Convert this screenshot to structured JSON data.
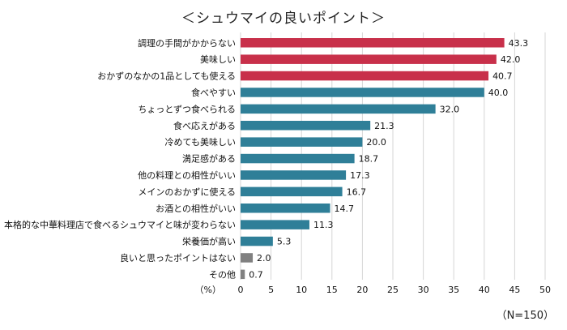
{
  "chart_data": {
    "type": "bar",
    "orientation": "horizontal",
    "title": "＜シュウマイの良いポイント＞",
    "unit_label": "（%）",
    "sample_note": "（N=150）",
    "xlim": [
      0,
      50
    ],
    "x_ticks": [
      0,
      5,
      10,
      15,
      20,
      25,
      30,
      35,
      40,
      45,
      50
    ],
    "grid": true,
    "categories": [
      "調理の手間がかからない",
      "美味しい",
      "おかずのなかの1品としても使える",
      "食べやすい",
      "ちょっとずつ食べられる",
      "食べ応えがある",
      "冷めても美味しい",
      "満足感がある",
      "他の料理との相性がいい",
      "メインのおかずに使える",
      "お酒との相性がいい",
      "本格的な中華料理店で食べるシュウマイと味が変わらない",
      "栄養価が高い",
      "良いと思ったポイントはない",
      "その他"
    ],
    "values": [
      43.3,
      42.0,
      40.7,
      40.0,
      32.0,
      21.3,
      20.0,
      18.7,
      17.3,
      16.7,
      14.7,
      11.3,
      5.3,
      2.0,
      0.7
    ],
    "value_labels": [
      "43.3",
      "42.0",
      "40.7",
      "40.0",
      "32.0",
      "21.3",
      "20.0",
      "18.7",
      "17.3",
      "16.7",
      "14.7",
      "11.3",
      "5.3",
      "2.0",
      "0.7"
    ],
    "bar_colors": [
      "#c8304a",
      "#c8304a",
      "#c8304a",
      "#2f7f98",
      "#2f7f98",
      "#2f7f98",
      "#2f7f98",
      "#2f7f98",
      "#2f7f98",
      "#2f7f98",
      "#2f7f98",
      "#2f7f98",
      "#2f7f98",
      "#808080",
      "#808080"
    ]
  }
}
